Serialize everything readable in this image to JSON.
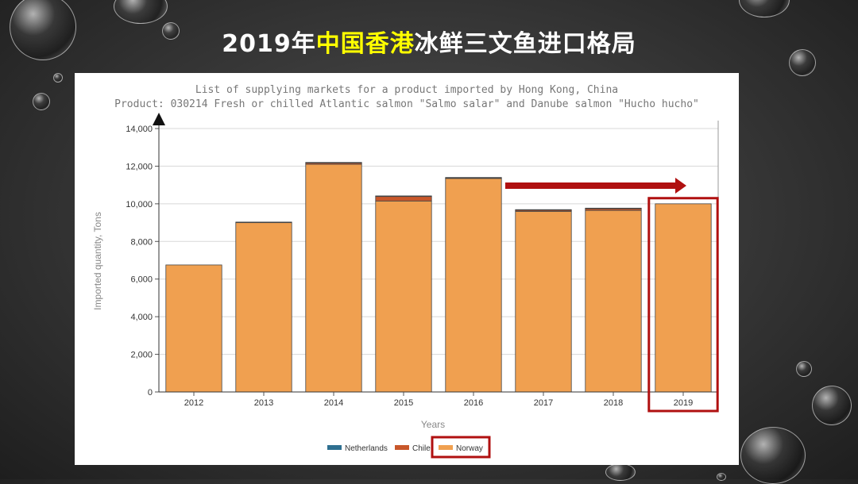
{
  "slide": {
    "title_prefix": "2019年",
    "title_highlight": "中国香港",
    "title_suffix": "冰鲜三文鱼进口格局"
  },
  "chart_data": {
    "type": "bar",
    "stacked": true,
    "title": "List of supplying markets for a product imported by Hong Kong, China",
    "subtitle": "Product: 030214 Fresh or chilled Atlantic salmon \"Salmo salar\" and Danube salmon \"Hucho hucho\"",
    "xlabel": "Years",
    "ylabel": "Imported quantity, Tons",
    "ylim": [
      0,
      14000
    ],
    "yticks": [
      0,
      2000,
      4000,
      6000,
      8000,
      10000,
      12000,
      14000
    ],
    "ytick_labels": [
      "0",
      "2,000",
      "4,000",
      "6,000",
      "8,000",
      "10,000",
      "12,000",
      "14,000"
    ],
    "grid": "horizontal",
    "legend_position": "bottom",
    "categories": [
      "2012",
      "2013",
      "2014",
      "2015",
      "2016",
      "2017",
      "2018",
      "2019"
    ],
    "series": [
      {
        "name": "Norway",
        "color": "#f0a050",
        "values": [
          6750,
          9000,
          12100,
          10150,
          11350,
          9600,
          9650,
          10000
        ]
      },
      {
        "name": "Chile",
        "color": "#c8572a",
        "values": [
          0,
          30,
          80,
          250,
          30,
          70,
          100,
          0
        ]
      },
      {
        "name": "Netherlands",
        "color": "#2e6f90",
        "values": [
          0,
          0,
          20,
          20,
          20,
          20,
          20,
          0
        ]
      }
    ],
    "legend_order": [
      "Netherlands",
      "Chile",
      "Norway"
    ],
    "highlight_category": "2019",
    "highlight_legend": "Norway",
    "highlight_color": "#b01010"
  }
}
